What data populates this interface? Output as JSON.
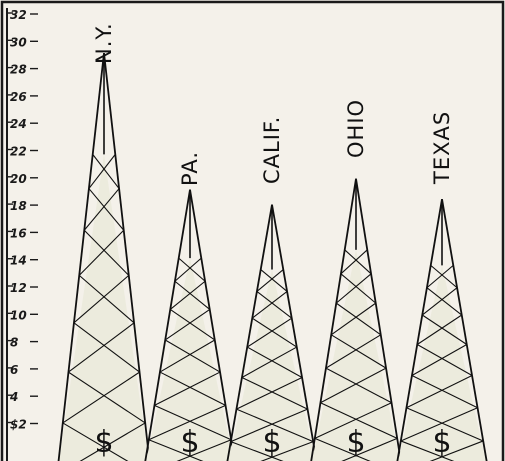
{
  "chart_data": {
    "type": "bar",
    "title": "",
    "xlabel": "",
    "ylabel": "",
    "y_unit_label": "$",
    "ylim": [
      2,
      32
    ],
    "yticks": [
      2,
      4,
      6,
      8,
      10,
      12,
      14,
      16,
      18,
      20,
      22,
      24,
      26,
      28,
      30,
      32
    ],
    "ytick_labels": [
      "$2",
      "4",
      "6",
      "8",
      "10",
      "12",
      "14",
      "16",
      "18",
      "20",
      "22",
      "24",
      "26",
      "28",
      "30",
      "32"
    ],
    "grid": false,
    "categories": [
      "N.Y.",
      "PA.",
      "CALIF.",
      "OHIO",
      "TEXAS"
    ],
    "values": [
      29.5,
      19.5,
      18.4,
      20.3,
      18.8
    ],
    "bar_symbol": "$",
    "style": "radio-tower pictograph"
  }
}
